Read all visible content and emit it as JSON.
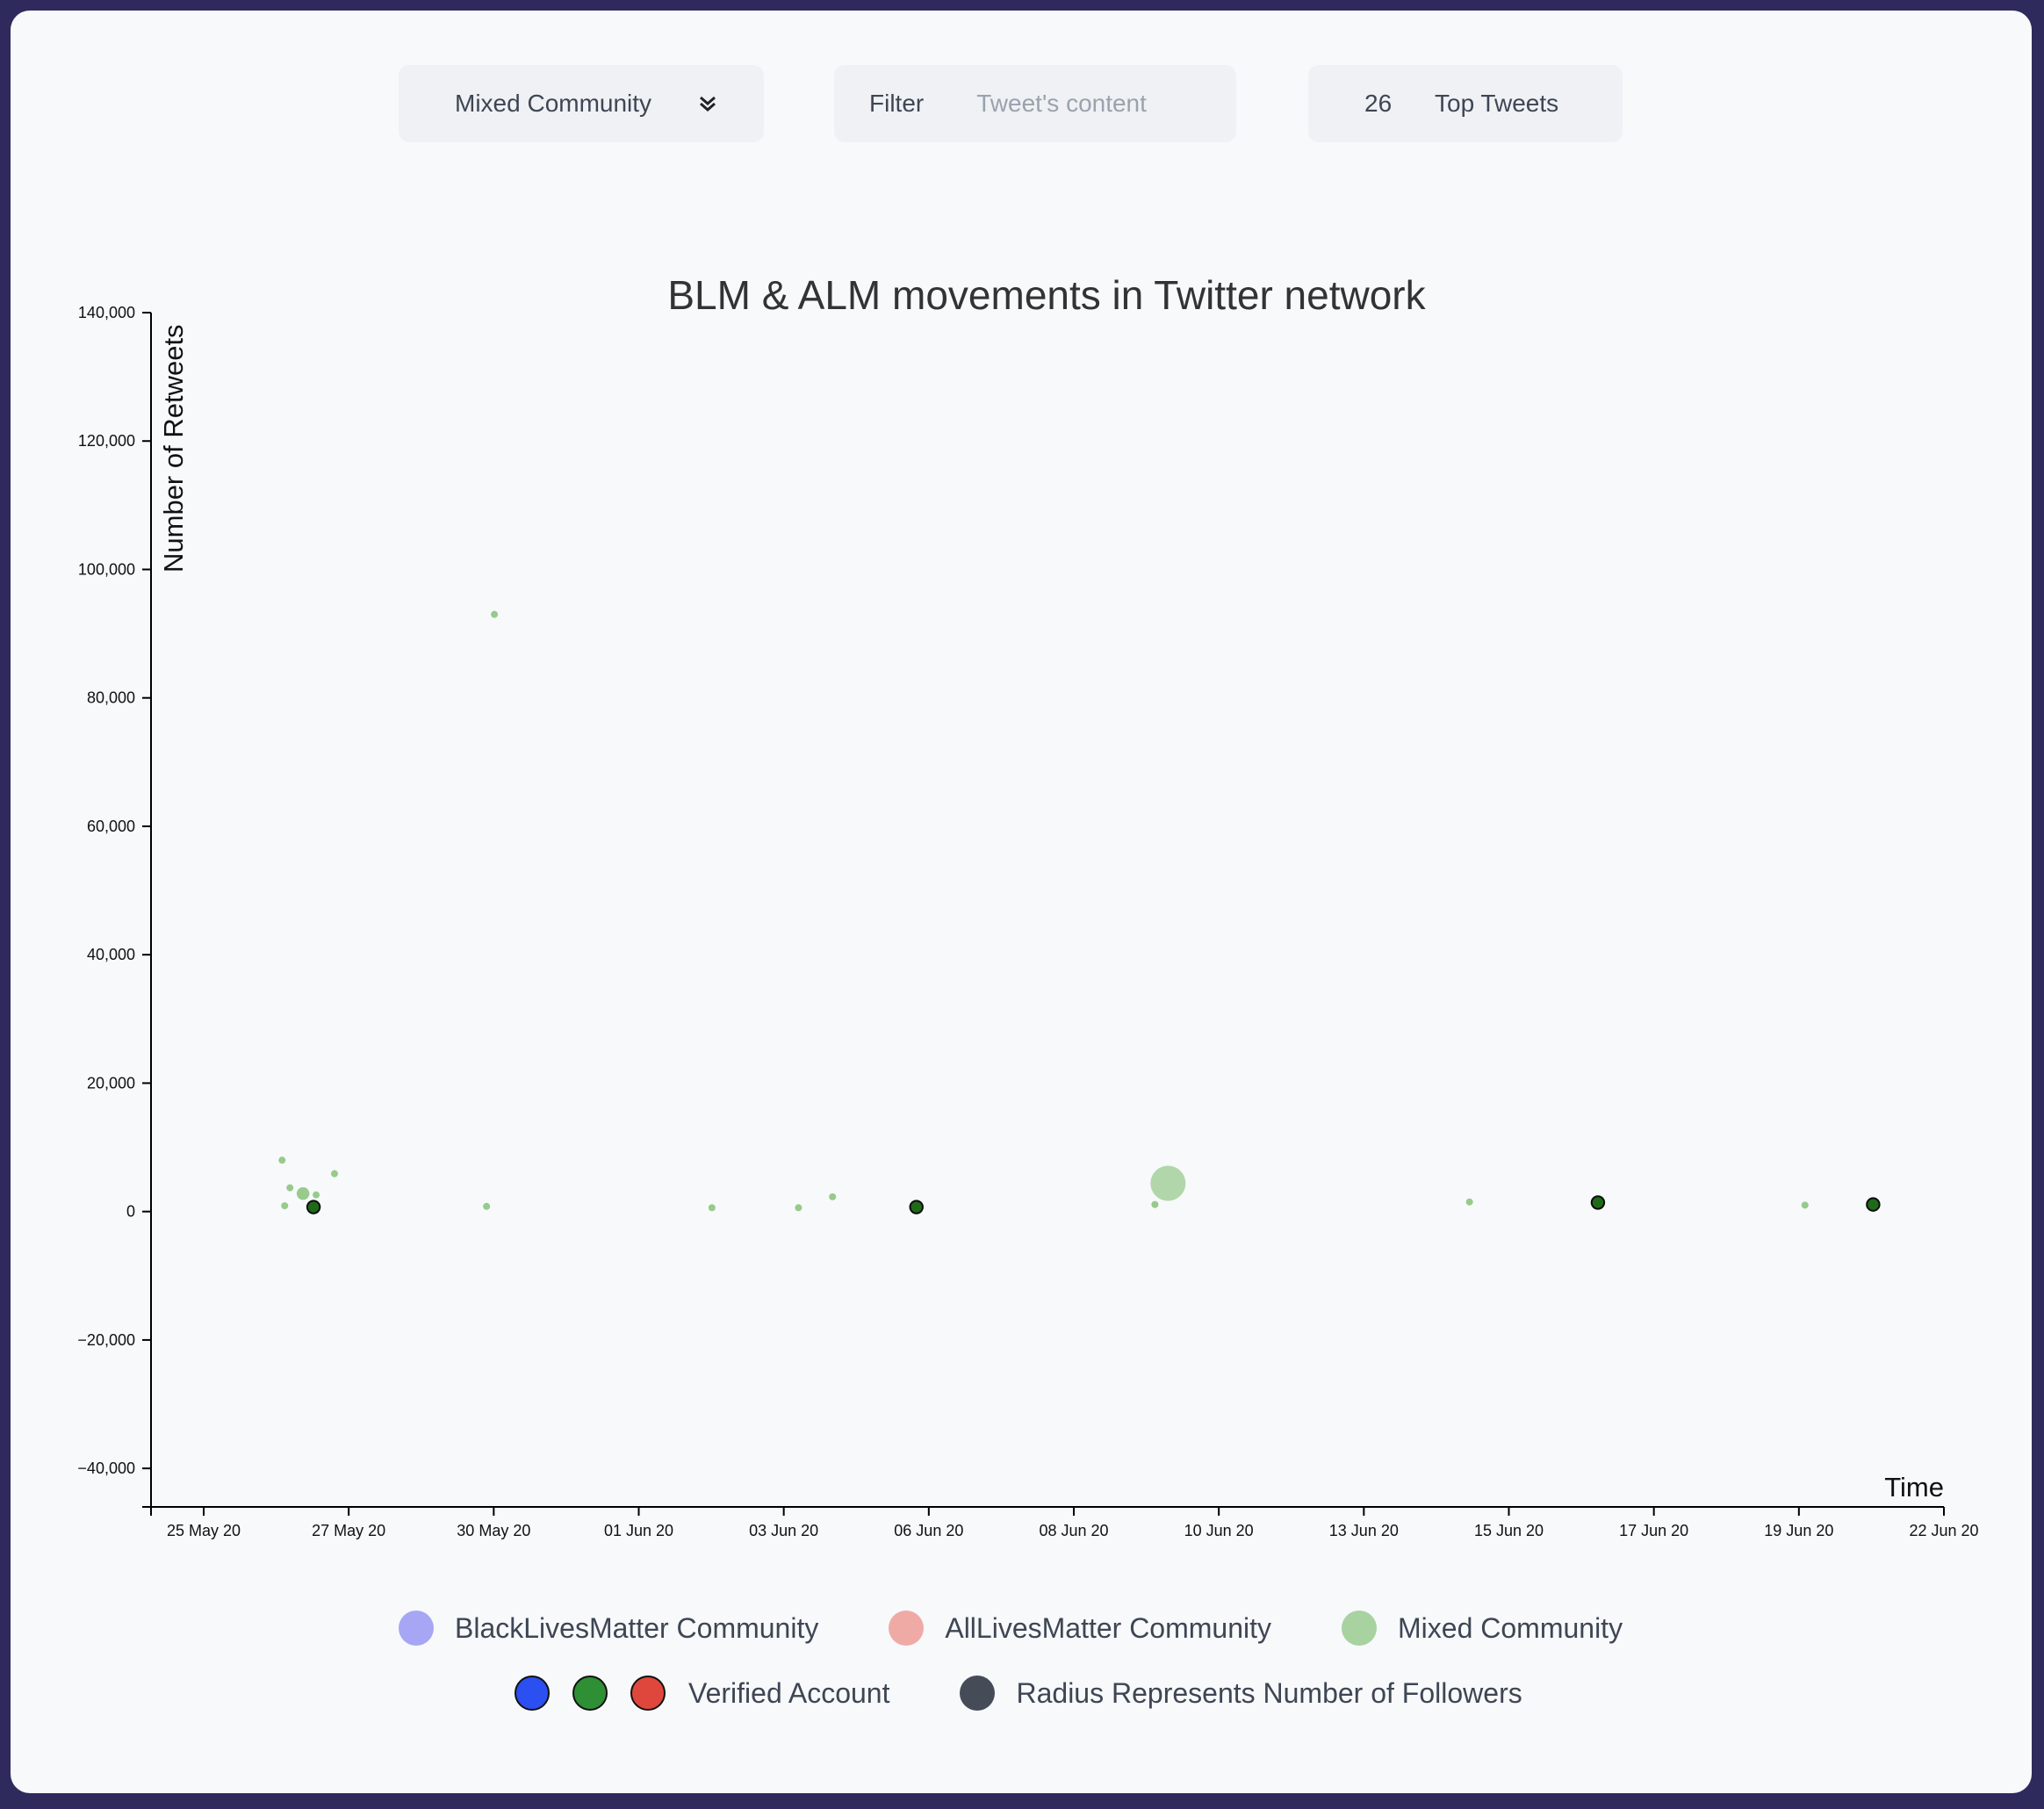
{
  "controls": {
    "community_selected": "Mixed Community",
    "filter_label": "Filter",
    "filter_placeholder": "Tweet's content",
    "filter_value": "",
    "top_count": "26",
    "top_label": "Top Tweets"
  },
  "colors": {
    "background": "#2e2a5c",
    "blm": "#a6a6f5",
    "alm": "#f0aaa6",
    "mixed": "#a8d2a0",
    "verified_blue": "#2b4ff0",
    "verified_green": "#2e8f35",
    "verified_red": "#e0473c",
    "followers_dot": "#454b57",
    "mixed_point": "#8cc47e",
    "verified_point": "#1f6a18"
  },
  "chart_data": {
    "type": "scatter",
    "title": "BLM & ALM movements in Twitter network",
    "xlabel": "Time",
    "ylabel": "Number of Retweets",
    "xlim": [
      "2020-05-24T12:00",
      "2020-06-22T00:00"
    ],
    "ylim": [
      -46000,
      140000
    ],
    "x_tick_labels": [
      "25 May 20",
      "27 May 20",
      "30 May 20",
      "01 Jun 20",
      "03 Jun 20",
      "06 Jun 20",
      "08 Jun 20",
      "10 Jun 20",
      "13 Jun 20",
      "15 Jun 20",
      "17 Jun 20",
      "19 Jun 20",
      "22 Jun 20"
    ],
    "y_tick_labels": [
      "−40,000",
      "−20,000",
      "0",
      "20,000",
      "40,000",
      "60,000",
      "80,000",
      "100,000",
      "120,000",
      "140,000"
    ],
    "y_ticks": [
      -40000,
      -20000,
      0,
      20000,
      40000,
      60000,
      80000,
      100000,
      120000,
      140000
    ],
    "series": [
      {
        "community": "Mixed",
        "points": [
          {
            "x": "2020-05-26T14:00",
            "y": 8000,
            "verified": false,
            "followers_level": 1
          },
          {
            "x": "2020-05-26T17:00",
            "y": 3700,
            "verified": false,
            "followers_level": 1
          },
          {
            "x": "2020-05-26T15:00",
            "y": 900,
            "verified": false,
            "followers_level": 1
          },
          {
            "x": "2020-05-26T22:00",
            "y": 2800,
            "verified": false,
            "followers_level": 2
          },
          {
            "x": "2020-05-27T03:00",
            "y": 2600,
            "verified": false,
            "followers_level": 1
          },
          {
            "x": "2020-05-27T10:00",
            "y": 5900,
            "verified": false,
            "followers_level": 1
          },
          {
            "x": "2020-05-27T02:00",
            "y": 700,
            "verified": true,
            "followers_level": 2
          },
          {
            "x": "2020-05-29T23:00",
            "y": 93000,
            "verified": false,
            "followers_level": 1
          },
          {
            "x": "2020-05-29T20:00",
            "y": 800,
            "verified": false,
            "followers_level": 1
          },
          {
            "x": "2020-06-02T10:00",
            "y": 600,
            "verified": false,
            "followers_level": 1
          },
          {
            "x": "2020-06-03T19:00",
            "y": 600,
            "verified": false,
            "followers_level": 1
          },
          {
            "x": "2020-06-04T08:00",
            "y": 2300,
            "verified": false,
            "followers_level": 1
          },
          {
            "x": "2020-06-05T16:00",
            "y": 700,
            "verified": true,
            "followers_level": 2
          },
          {
            "x": "2020-06-09T11:00",
            "y": 1100,
            "verified": false,
            "followers_level": 1
          },
          {
            "x": "2020-06-09T16:00",
            "y": 4400,
            "verified": false,
            "followers_level": 6
          },
          {
            "x": "2020-06-14T11:00",
            "y": 1500,
            "verified": false,
            "followers_level": 1
          },
          {
            "x": "2020-06-16T12:00",
            "y": 1400,
            "verified": true,
            "followers_level": 2
          },
          {
            "x": "2020-06-19T19:00",
            "y": 1000,
            "verified": false,
            "followers_level": 1
          },
          {
            "x": "2020-06-20T21:00",
            "y": 1100,
            "verified": true,
            "followers_level": 2
          }
        ]
      }
    ]
  },
  "legend": {
    "blm": "BlackLivesMatter Community",
    "alm": "AllLivesMatter Community",
    "mixed": "Mixed Community",
    "verified": "Verified Account",
    "radius": "Radius Represents Number of Followers"
  }
}
